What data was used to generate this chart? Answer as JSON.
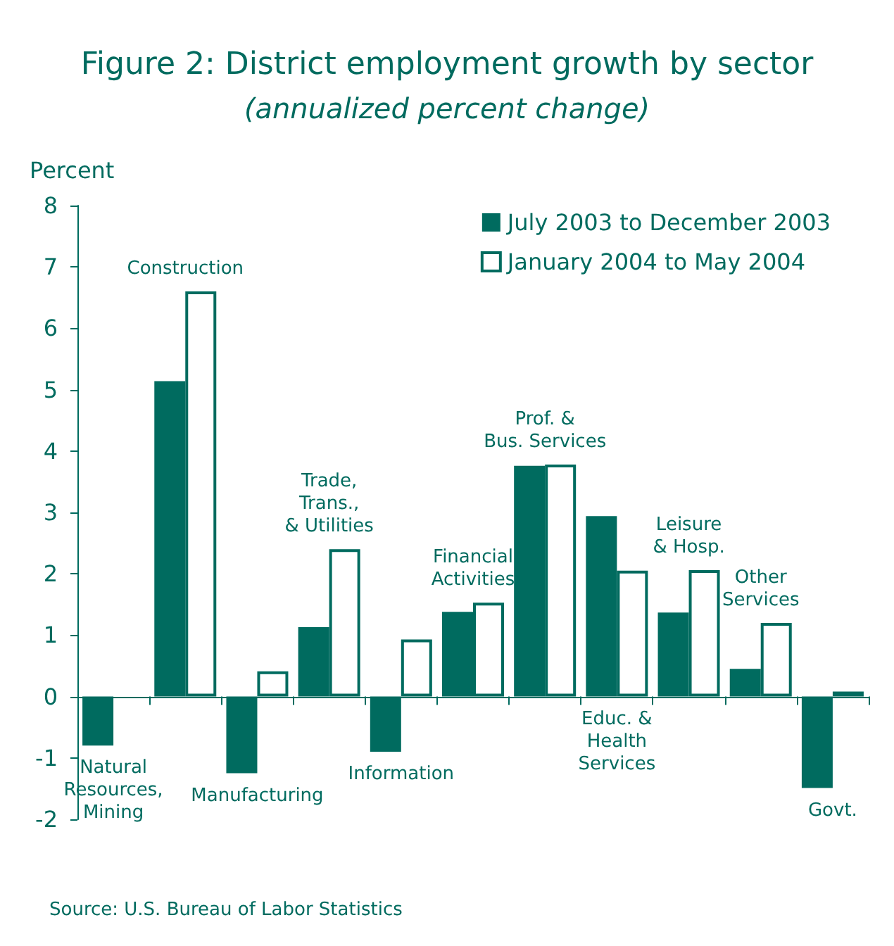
{
  "chart_data": {
    "type": "bar",
    "title": "Figure 2: District employment growth by sector",
    "subtitle": "(annualized percent change)",
    "ylabel": "Percent",
    "categories": [
      "Natural\nResources,\nMining",
      "Construction",
      "Manufacturing",
      "Trade,\nTrans.,\n& Utilities",
      "Information",
      "Financial\nActivities",
      "Prof. &\nBus. Services",
      "Educ. &\nHealth\nServices",
      "Leisure\n& Hosp.",
      "Other\nServices",
      "Govt."
    ],
    "series": [
      {
        "name": "July 2003 to December 2003",
        "color": "#006b5f",
        "values": [
          -0.8,
          5.14,
          -1.25,
          1.13,
          -0.9,
          1.38,
          3.76,
          2.94,
          1.37,
          0.45,
          -1.49
        ]
      },
      {
        "name": "January 2004 to May 2004",
        "color": "#ffffff",
        "values": [
          null,
          6.6,
          0.41,
          2.4,
          0.93,
          1.53,
          3.78,
          2.05,
          2.06,
          1.2,
          0.08
        ]
      }
    ],
    "ref_lines": [
      {
        "axis": "y",
        "value": 0
      }
    ],
    "ylim": [
      -2,
      8
    ],
    "yticks": [
      -2,
      -1,
      0,
      1,
      2,
      3,
      4,
      5,
      6,
      7,
      8
    ],
    "grid": false,
    "legend": "top right",
    "annotations": [
      "Source: U.S. Bureau of Labor Statistics"
    ]
  }
}
